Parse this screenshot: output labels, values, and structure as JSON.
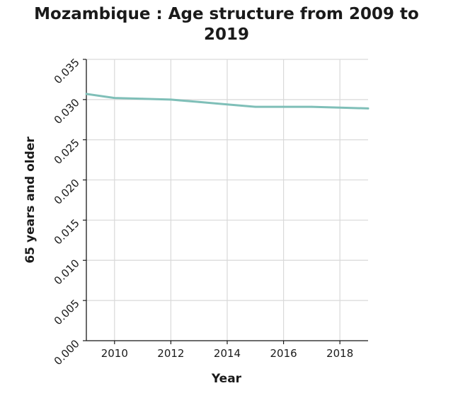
{
  "chart_data": {
    "type": "line",
    "title_lines": [
      "Mozambique : Age structure from 2009 to",
      "2019"
    ],
    "xlabel": "Year",
    "ylabel": "65 years and older",
    "xlim": [
      2009,
      2019
    ],
    "ylim": [
      0,
      0.035
    ],
    "xticks": [
      2010,
      2012,
      2014,
      2016,
      2018
    ],
    "yticks": [
      "0.000",
      "0.005",
      "0.010",
      "0.015",
      "0.020",
      "0.025",
      "0.030",
      "0.035"
    ],
    "grid": true,
    "series": [
      {
        "color": "#7fbfb8",
        "x": [
          2009,
          2010,
          2011,
          2012,
          2013,
          2014,
          2015,
          2016,
          2017,
          2018,
          2019
        ],
        "y": [
          0.0307,
          0.0302,
          0.0301,
          0.03,
          0.0297,
          0.0294,
          0.0291,
          0.0291,
          0.0291,
          0.029,
          0.0289
        ]
      }
    ]
  }
}
